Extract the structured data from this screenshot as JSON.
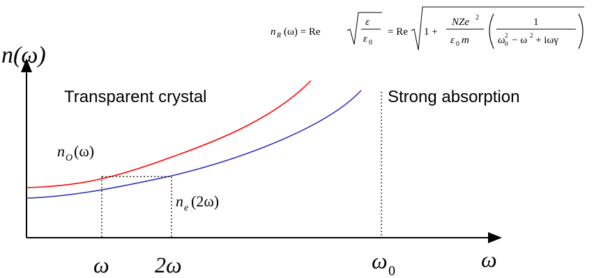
{
  "formula": {
    "lhs": "n",
    "lhs_sub": "R",
    "lhs_arg": "(ω) = Re",
    "ratio_num": "ε",
    "ratio_den": "ε",
    "ratio_den_sub": "0",
    "mid": "= Re",
    "one_plus": "1 +",
    "frac_num": "NZe",
    "frac_num_sup": "2",
    "frac_den": "ε",
    "frac_den_sub": "0",
    "frac_den_tail": "m",
    "inner_num": "1",
    "inner_den_a": "ω",
    "inner_den_a_sub": "0",
    "inner_den_a_sup": "2",
    "inner_den_b": "− ω",
    "inner_den_b_sup": "2",
    "inner_den_c": "+ iωγ"
  },
  "y_axis_label": "n(ω)",
  "region_left": "Transparent crystal",
  "region_right": "Strong absorption",
  "curve_labels": {
    "ordinary": {
      "symbol": "n",
      "sub": "O",
      "arg": "(ω)"
    },
    "extraordinary": {
      "symbol": "n",
      "sub": "e",
      "arg": "(2ω)"
    }
  },
  "x_ticks": {
    "omega": "ω",
    "two_omega": "2ω",
    "omega0": "ω",
    "omega0_sub": "0"
  },
  "x_axis_label": "ω",
  "colors": {
    "ordinary_curve": "#ff0000",
    "extraordinary_curve": "#3333bb",
    "axes": "#000000"
  }
}
